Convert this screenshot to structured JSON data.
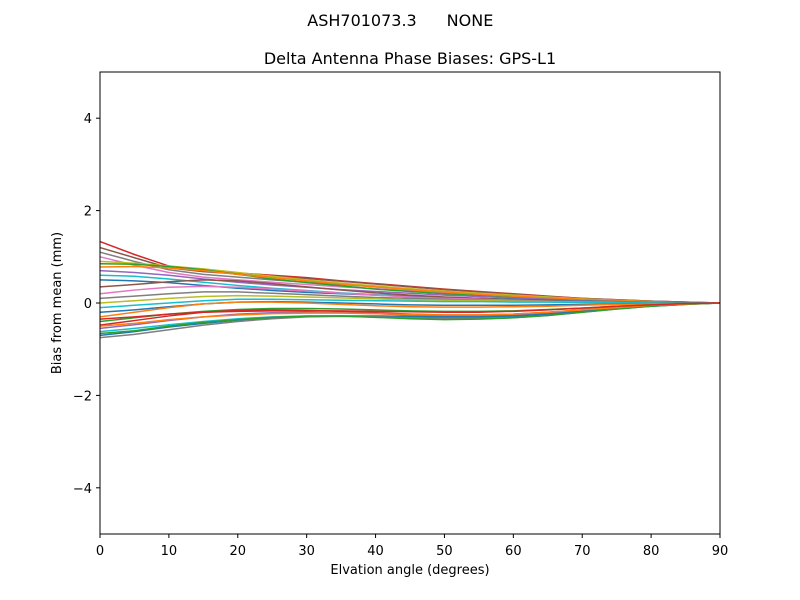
{
  "figure": {
    "suptitle_left": "ASH701073.3",
    "suptitle_right": "NONE"
  },
  "chart_data": {
    "type": "line",
    "title": "Delta Antenna Phase Biases: GPS-L1",
    "xlabel": "Elvation angle (degrees)",
    "ylabel": "Bias from mean (mm)",
    "xlim": [
      0,
      90
    ],
    "ylim": [
      -5,
      5
    ],
    "xticks": [
      "0",
      "10",
      "20",
      "30",
      "40",
      "50",
      "60",
      "70",
      "80",
      "90"
    ],
    "yticks": [
      "4",
      "2",
      "0",
      "−2",
      "−4"
    ],
    "grid": false,
    "legend": "none",
    "x": [
      0,
      5,
      10,
      15,
      20,
      25,
      30,
      35,
      40,
      45,
      50,
      55,
      60,
      65,
      70,
      75,
      80,
      85,
      90
    ],
    "series": [
      {
        "color": "#d62728",
        "values": [
          1.33,
          1.05,
          0.8,
          0.7,
          0.65,
          0.6,
          0.55,
          0.48,
          0.42,
          0.36,
          0.3,
          0.25,
          0.2,
          0.15,
          0.1,
          0.07,
          0.04,
          0.02,
          0.0
        ]
      },
      {
        "color": "#8c564b",
        "values": [
          1.2,
          0.98,
          0.76,
          0.68,
          0.63,
          0.58,
          0.53,
          0.47,
          0.41,
          0.35,
          0.29,
          0.24,
          0.19,
          0.14,
          0.1,
          0.07,
          0.04,
          0.02,
          0.0
        ]
      },
      {
        "color": "#7f7f7f",
        "values": [
          1.1,
          0.9,
          0.72,
          0.62,
          0.56,
          0.5,
          0.45,
          0.4,
          0.35,
          0.3,
          0.25,
          0.21,
          0.17,
          0.13,
          0.09,
          0.06,
          0.04,
          0.02,
          0.0
        ]
      },
      {
        "color": "#e377c2",
        "values": [
          1.0,
          0.82,
          0.66,
          0.56,
          0.5,
          0.45,
          0.4,
          0.35,
          0.31,
          0.27,
          0.22,
          0.18,
          0.15,
          0.11,
          0.08,
          0.05,
          0.03,
          0.01,
          0.0
        ]
      },
      {
        "color": "#bcbd22",
        "values": [
          0.9,
          0.86,
          0.8,
          0.74,
          0.66,
          0.58,
          0.5,
          0.43,
          0.37,
          0.31,
          0.26,
          0.21,
          0.17,
          0.13,
          0.09,
          0.06,
          0.03,
          0.01,
          0.0
        ]
      },
      {
        "color": "#2ca02c",
        "values": [
          0.85,
          0.84,
          0.79,
          0.72,
          0.62,
          0.52,
          0.44,
          0.37,
          0.3,
          0.25,
          0.2,
          0.16,
          0.12,
          0.09,
          0.06,
          0.04,
          0.02,
          0.01,
          0.0
        ]
      },
      {
        "color": "#ff7f0e",
        "values": [
          0.78,
          0.79,
          0.76,
          0.7,
          0.62,
          0.55,
          0.48,
          0.41,
          0.35,
          0.29,
          0.24,
          0.19,
          0.15,
          0.11,
          0.08,
          0.05,
          0.03,
          0.01,
          0.0
        ]
      },
      {
        "color": "#9467bd",
        "values": [
          0.7,
          0.66,
          0.6,
          0.52,
          0.45,
          0.39,
          0.34,
          0.29,
          0.25,
          0.21,
          0.17,
          0.14,
          0.11,
          0.08,
          0.05,
          0.03,
          0.02,
          0.01,
          0.0
        ]
      },
      {
        "color": "#17becf",
        "values": [
          0.6,
          0.58,
          0.52,
          0.45,
          0.38,
          0.32,
          0.27,
          0.22,
          0.18,
          0.15,
          0.12,
          0.1,
          0.07,
          0.05,
          0.03,
          0.02,
          0.01,
          0.0,
          0.0
        ]
      },
      {
        "color": "#1f77b4",
        "values": [
          0.5,
          0.48,
          0.44,
          0.38,
          0.32,
          0.27,
          0.23,
          0.2,
          0.17,
          0.14,
          0.12,
          0.1,
          0.08,
          0.06,
          0.04,
          0.03,
          0.02,
          0.01,
          0.0
        ]
      },
      {
        "color": "#8c564b",
        "values": [
          0.35,
          0.4,
          0.46,
          0.5,
          0.48,
          0.42,
          0.35,
          0.28,
          0.22,
          0.17,
          0.13,
          0.1,
          0.07,
          0.05,
          0.03,
          0.02,
          0.01,
          0.0,
          0.0
        ]
      },
      {
        "color": "#e377c2",
        "values": [
          0.2,
          0.28,
          0.34,
          0.36,
          0.34,
          0.3,
          0.26,
          0.21,
          0.17,
          0.13,
          0.1,
          0.08,
          0.06,
          0.04,
          0.03,
          0.02,
          0.01,
          0.0,
          0.0
        ]
      },
      {
        "color": "#7f7f7f",
        "values": [
          0.1,
          0.15,
          0.2,
          0.24,
          0.24,
          0.21,
          0.18,
          0.15,
          0.12,
          0.1,
          0.08,
          0.06,
          0.05,
          0.04,
          0.03,
          0.02,
          0.01,
          0.0,
          0.0
        ]
      },
      {
        "color": "#bcbd22",
        "values": [
          0.0,
          0.05,
          0.1,
          0.14,
          0.16,
          0.15,
          0.13,
          0.11,
          0.09,
          0.07,
          0.06,
          0.05,
          0.04,
          0.03,
          0.02,
          0.01,
          0.01,
          0.0,
          0.0
        ]
      },
      {
        "color": "#17becf",
        "values": [
          -0.1,
          -0.05,
          0.0,
          0.05,
          0.08,
          0.08,
          0.07,
          0.06,
          0.05,
          0.04,
          0.03,
          0.03,
          0.02,
          0.02,
          0.01,
          0.01,
          0.0,
          0.0,
          0.0
        ]
      },
      {
        "color": "#1f77b4",
        "values": [
          -0.2,
          -0.15,
          -0.08,
          -0.02,
          0.02,
          0.03,
          0.02,
          0.0,
          -0.02,
          -0.04,
          -0.05,
          -0.05,
          -0.05,
          -0.04,
          -0.03,
          -0.02,
          -0.01,
          0.0,
          0.0
        ]
      },
      {
        "color": "#ff7f0e",
        "values": [
          -0.3,
          -0.2,
          -0.1,
          -0.02,
          0.02,
          0.02,
          0.0,
          -0.03,
          -0.06,
          -0.08,
          -0.09,
          -0.09,
          -0.08,
          -0.07,
          -0.05,
          -0.03,
          -0.02,
          -0.01,
          0.0
        ]
      },
      {
        "color": "#2ca02c",
        "values": [
          -0.4,
          -0.32,
          -0.24,
          -0.18,
          -0.14,
          -0.12,
          -0.12,
          -0.13,
          -0.15,
          -0.17,
          -0.18,
          -0.18,
          -0.17,
          -0.14,
          -0.11,
          -0.07,
          -0.04,
          -0.02,
          0.0
        ]
      },
      {
        "color": "#d62728",
        "values": [
          -0.48,
          -0.38,
          -0.28,
          -0.2,
          -0.16,
          -0.15,
          -0.16,
          -0.18,
          -0.21,
          -0.24,
          -0.26,
          -0.26,
          -0.24,
          -0.2,
          -0.15,
          -0.1,
          -0.06,
          -0.02,
          0.0
        ]
      },
      {
        "color": "#9467bd",
        "values": [
          -0.55,
          -0.47,
          -0.38,
          -0.3,
          -0.24,
          -0.21,
          -0.2,
          -0.21,
          -0.23,
          -0.26,
          -0.28,
          -0.28,
          -0.26,
          -0.22,
          -0.17,
          -0.11,
          -0.06,
          -0.02,
          0.0
        ]
      },
      {
        "color": "#17becf",
        "values": [
          -0.62,
          -0.55,
          -0.47,
          -0.4,
          -0.34,
          -0.3,
          -0.28,
          -0.28,
          -0.29,
          -0.31,
          -0.32,
          -0.32,
          -0.3,
          -0.25,
          -0.19,
          -0.12,
          -0.07,
          -0.03,
          0.0
        ]
      },
      {
        "color": "#1f77b4",
        "values": [
          -0.7,
          -0.62,
          -0.52,
          -0.44,
          -0.37,
          -0.32,
          -0.29,
          -0.28,
          -0.28,
          -0.29,
          -0.3,
          -0.3,
          -0.28,
          -0.24,
          -0.18,
          -0.12,
          -0.06,
          -0.02,
          0.0
        ]
      },
      {
        "color": "#7f7f7f",
        "values": [
          -0.75,
          -0.68,
          -0.58,
          -0.48,
          -0.4,
          -0.34,
          -0.3,
          -0.29,
          -0.3,
          -0.32,
          -0.34,
          -0.34,
          -0.32,
          -0.27,
          -0.2,
          -0.13,
          -0.07,
          -0.03,
          0.0
        ]
      },
      {
        "color": "#2ca02c",
        "values": [
          -0.66,
          -0.6,
          -0.5,
          -0.42,
          -0.36,
          -0.31,
          -0.28,
          -0.28,
          -0.31,
          -0.34,
          -0.36,
          -0.35,
          -0.32,
          -0.27,
          -0.2,
          -0.13,
          -0.07,
          -0.03,
          0.0
        ]
      },
      {
        "color": "#ff7f0e",
        "values": [
          -0.5,
          -0.44,
          -0.36,
          -0.3,
          -0.26,
          -0.23,
          -0.22,
          -0.22,
          -0.23,
          -0.25,
          -0.26,
          -0.26,
          -0.24,
          -0.2,
          -0.15,
          -0.1,
          -0.05,
          -0.02,
          0.0
        ]
      },
      {
        "color": "#d62728",
        "values": [
          -0.35,
          -0.3,
          -0.24,
          -0.2,
          -0.18,
          -0.17,
          -0.17,
          -0.17,
          -0.18,
          -0.19,
          -0.2,
          -0.2,
          -0.18,
          -0.15,
          -0.11,
          -0.07,
          -0.04,
          -0.01,
          0.0
        ]
      }
    ]
  }
}
